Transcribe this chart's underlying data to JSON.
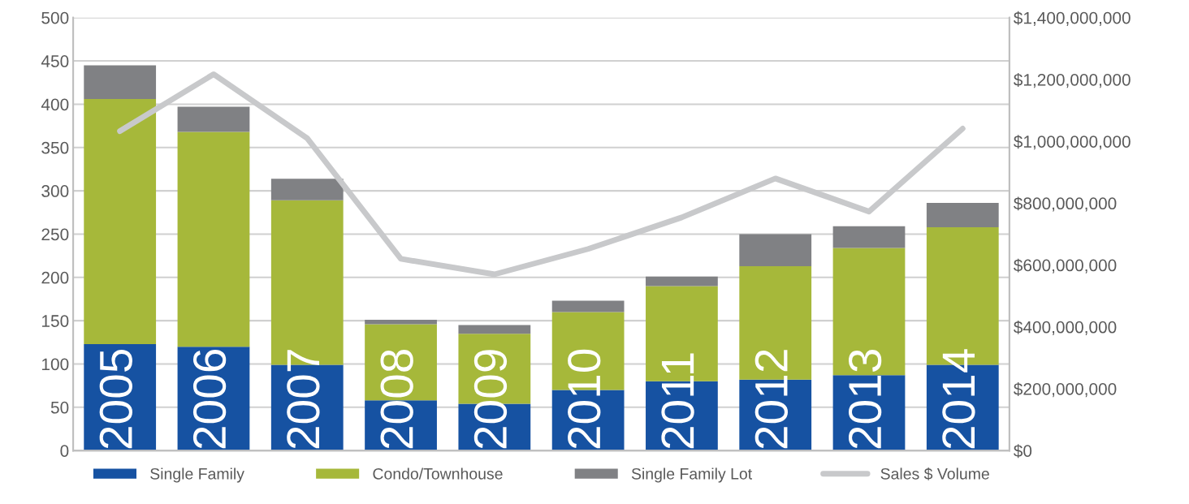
{
  "chart_data": {
    "type": "bar",
    "stacked": true,
    "categories": [
      "2005",
      "2006",
      "2007",
      "2008",
      "2009",
      "2010",
      "2011",
      "2012",
      "2013",
      "2014"
    ],
    "series": [
      {
        "name": "Single Family",
        "color": "#1652a2",
        "values": [
          123,
          120,
          99,
          58,
          54,
          70,
          80,
          82,
          87,
          99
        ]
      },
      {
        "name": "Condo/Townhouse",
        "color": "#a6b83a",
        "values": [
          283,
          248,
          190,
          88,
          81,
          90,
          110,
          131,
          147,
          159
        ]
      },
      {
        "name": "Single Family Lot",
        "color": "#808184",
        "values": [
          39,
          29,
          25,
          5,
          10,
          13,
          11,
          37,
          25,
          28
        ]
      },
      {
        "name": "Sales $ Volume",
        "type": "line",
        "axis": "y2",
        "color": "#c8c9cb",
        "values": [
          1033000000,
          1217000000,
          1010000000,
          620000000,
          570000000,
          652000000,
          754000000,
          880000000,
          773000000,
          1041000000
        ]
      }
    ],
    "ylim": [
      0,
      500
    ],
    "yticks": [
      0,
      50,
      100,
      150,
      200,
      250,
      300,
      350,
      400,
      450,
      500
    ],
    "y2lim": [
      0,
      1400000000
    ],
    "y2ticks": [
      {
        "value": 0,
        "label": "$0"
      },
      {
        "value": 200000000,
        "label": "$200,000,000"
      },
      {
        "value": 400000000,
        "label": "$400,000,000"
      },
      {
        "value": 600000000,
        "label": "$600,000,000"
      },
      {
        "value": 800000000,
        "label": "$800,000,000"
      },
      {
        "value": 1000000000,
        "label": "$1,000,000,000"
      },
      {
        "value": 1200000000,
        "label": "$1,200,000,000"
      },
      {
        "value": 1400000000,
        "label": "$1,400,000,000"
      }
    ],
    "grid": "y",
    "legend": "bottom",
    "line_style": "solid",
    "marker": "none"
  }
}
